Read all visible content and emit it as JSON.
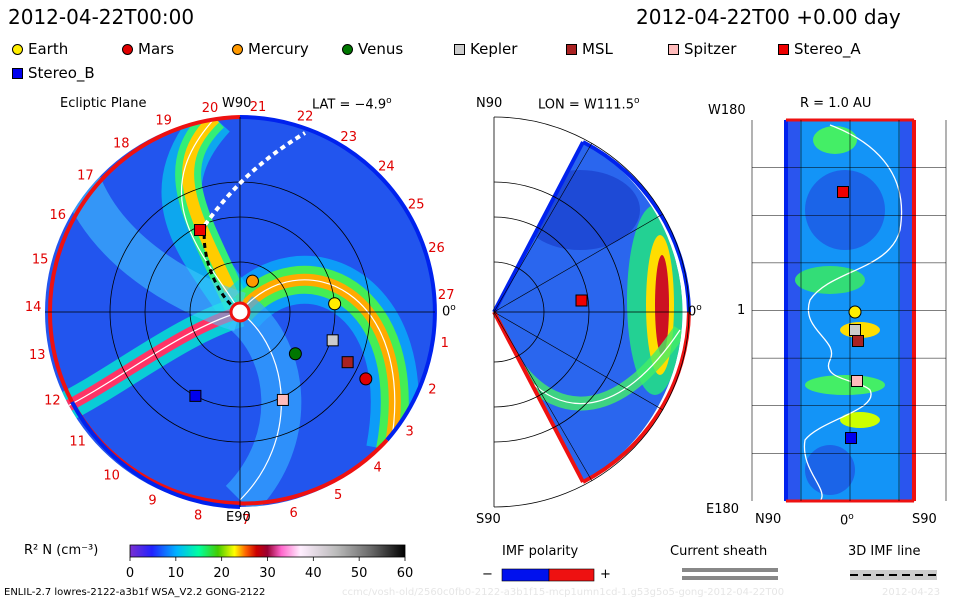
{
  "header": {
    "date_left": "2012-04-22T00:00",
    "date_right": "2012-04-22T00 +0.00 day"
  },
  "legend": [
    {
      "name": "Earth",
      "shape": "circle",
      "color": "#ffee00"
    },
    {
      "name": "Mars",
      "shape": "circle",
      "color": "#e00000"
    },
    {
      "name": "Mercury",
      "shape": "circle",
      "color": "#ff9900"
    },
    {
      "name": "Venus",
      "shape": "circle",
      "color": "#007700"
    },
    {
      "name": "Kepler",
      "shape": "square",
      "color": "#cccccc"
    },
    {
      "name": "MSL",
      "shape": "square",
      "color": "#aa2222"
    },
    {
      "name": "Spitzer",
      "shape": "square",
      "color": "#ffbbbb"
    },
    {
      "name": "Stereo_A",
      "shape": "square",
      "color": "#ee0000"
    },
    {
      "name": "Stereo_B",
      "shape": "square",
      "color": "#0000ee"
    }
  ],
  "panels": {
    "ecliptic": {
      "title": "Ecliptic Plane",
      "top_label": "W90",
      "bottom_label": "E90",
      "right_label": "0",
      "lat_label": "LAT = −4.9",
      "carrington_ticks": [
        "1",
        "2",
        "3",
        "4",
        "5",
        "6",
        "7",
        "8",
        "9",
        "10",
        "11",
        "12",
        "13",
        "14",
        "15",
        "16",
        "17",
        "18",
        "19",
        "20",
        "21",
        "22",
        "23",
        "24",
        "25",
        "26",
        "27"
      ]
    },
    "meridional": {
      "top_label": "N90",
      "bottom_label": "S90",
      "lon_label": "LON = W111.5",
      "right_label": "0"
    },
    "sphere": {
      "r_label": "R = 1.0 AU",
      "top_left": "W180",
      "bottom_left": "E180",
      "mid_left": "1",
      "x_left": "N90",
      "x_mid": "0",
      "x_right": "S90"
    }
  },
  "colorbar": {
    "label": "R² N (cm⁻³)",
    "ticks": [
      "0",
      "10",
      "20",
      "30",
      "40",
      "50",
      "60"
    ],
    "min": 0,
    "max": 60
  },
  "imf": {
    "label": "IMF polarity",
    "minus": "−",
    "plus": "+"
  },
  "sheath": {
    "label": "Current sheath"
  },
  "imf3d": {
    "label": "3D IMF line"
  },
  "footer": {
    "model": "ENLIL-2.7 lowres-2122-a3b1f WSA_V2.2 GONG-2122",
    "path": "ccmc/vosh-old/2560c0fb0-2122-a3b1f15-mcp1umn1cd-1.g53g5o5-gong-2012-04-22T00",
    "stamp": "2012-04-23"
  },
  "chart_data": {
    "type": "heatmap",
    "title": "2012-04-22T00:00",
    "quantity": "R² N (cm⁻³)",
    "scale": [
      0,
      60
    ],
    "objects_ecliptic": [
      {
        "name": "Earth",
        "r_au": 1.0,
        "lon_deg": 5
      },
      {
        "name": "Mars",
        "r_au": 1.5,
        "lon_deg": -28
      },
      {
        "name": "Mercury",
        "r_au": 0.35,
        "lon_deg": 68
      },
      {
        "name": "Venus",
        "r_au": 0.73,
        "lon_deg": -37
      },
      {
        "name": "Kepler",
        "r_au": 1.02,
        "lon_deg": -17
      },
      {
        "name": "MSL",
        "r_au": 1.25,
        "lon_deg": -25
      },
      {
        "name": "Spitzer",
        "r_au": 1.03,
        "lon_deg": -64
      },
      {
        "name": "Stereo_A",
        "r_au": 0.96,
        "lon_deg": 116
      },
      {
        "name": "Stereo_B",
        "r_au": 1.0,
        "lon_deg": -118
      }
    ]
  }
}
